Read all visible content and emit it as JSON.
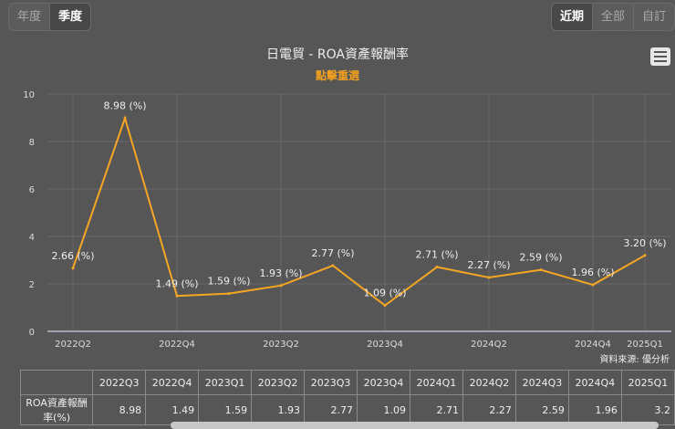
{
  "period_toggle": {
    "items": [
      "年度",
      "季度"
    ],
    "active": 1
  },
  "range_toggle": {
    "items": [
      "近期",
      "全部",
      "自訂"
    ],
    "active": 0
  },
  "menu_icon": "hamburger-menu-icon",
  "chart_data": {
    "type": "line",
    "title": "日電貿 - ROA資產報酬率",
    "subtitle": "點擊重選",
    "categories": [
      "2022Q2",
      "2022Q3",
      "2022Q4",
      "2023Q1",
      "2023Q2",
      "2023Q3",
      "2023Q4",
      "2024Q1",
      "2024Q2",
      "2024Q3",
      "2024Q4",
      "2025Q1"
    ],
    "x_tick_labels": [
      "2022Q2",
      "2022Q4",
      "2023Q2",
      "2023Q4",
      "2024Q2",
      "2024Q4",
      "2025Q1"
    ],
    "series": [
      {
        "values": [
          2.66,
          8.98,
          1.49,
          1.59,
          1.93,
          2.77,
          1.09,
          2.71,
          2.27,
          2.59,
          1.96,
          3.2
        ],
        "color": "#f5a623"
      }
    ],
    "data_labels": [
      "2.66 (%)",
      "8.98 (%)",
      "1.49 (%)",
      "1.59 (%)",
      "1.93 (%)",
      "2.77 (%)",
      "1.09 (%)",
      "2.71 (%)",
      "2.27 (%)",
      "2.59 (%)",
      "1.96 (%)",
      "3.20 (%)"
    ],
    "ylim": [
      0,
      10
    ],
    "y_ticks": [
      0,
      2,
      4,
      6,
      8,
      10
    ],
    "grid": true
  },
  "source": "資料來源: 優分析",
  "table": {
    "headers": [
      "",
      "2022Q3",
      "2022Q4",
      "2023Q1",
      "2023Q2",
      "2023Q3",
      "2023Q4",
      "2024Q1",
      "2024Q2",
      "2024Q3",
      "2024Q4",
      "2025Q1"
    ],
    "rows": [
      [
        "ROA資產報酬率(%)",
        "8.98",
        "1.49",
        "1.59",
        "1.93",
        "2.77",
        "1.09",
        "2.71",
        "2.27",
        "2.59",
        "1.96",
        "3.2"
      ]
    ]
  }
}
